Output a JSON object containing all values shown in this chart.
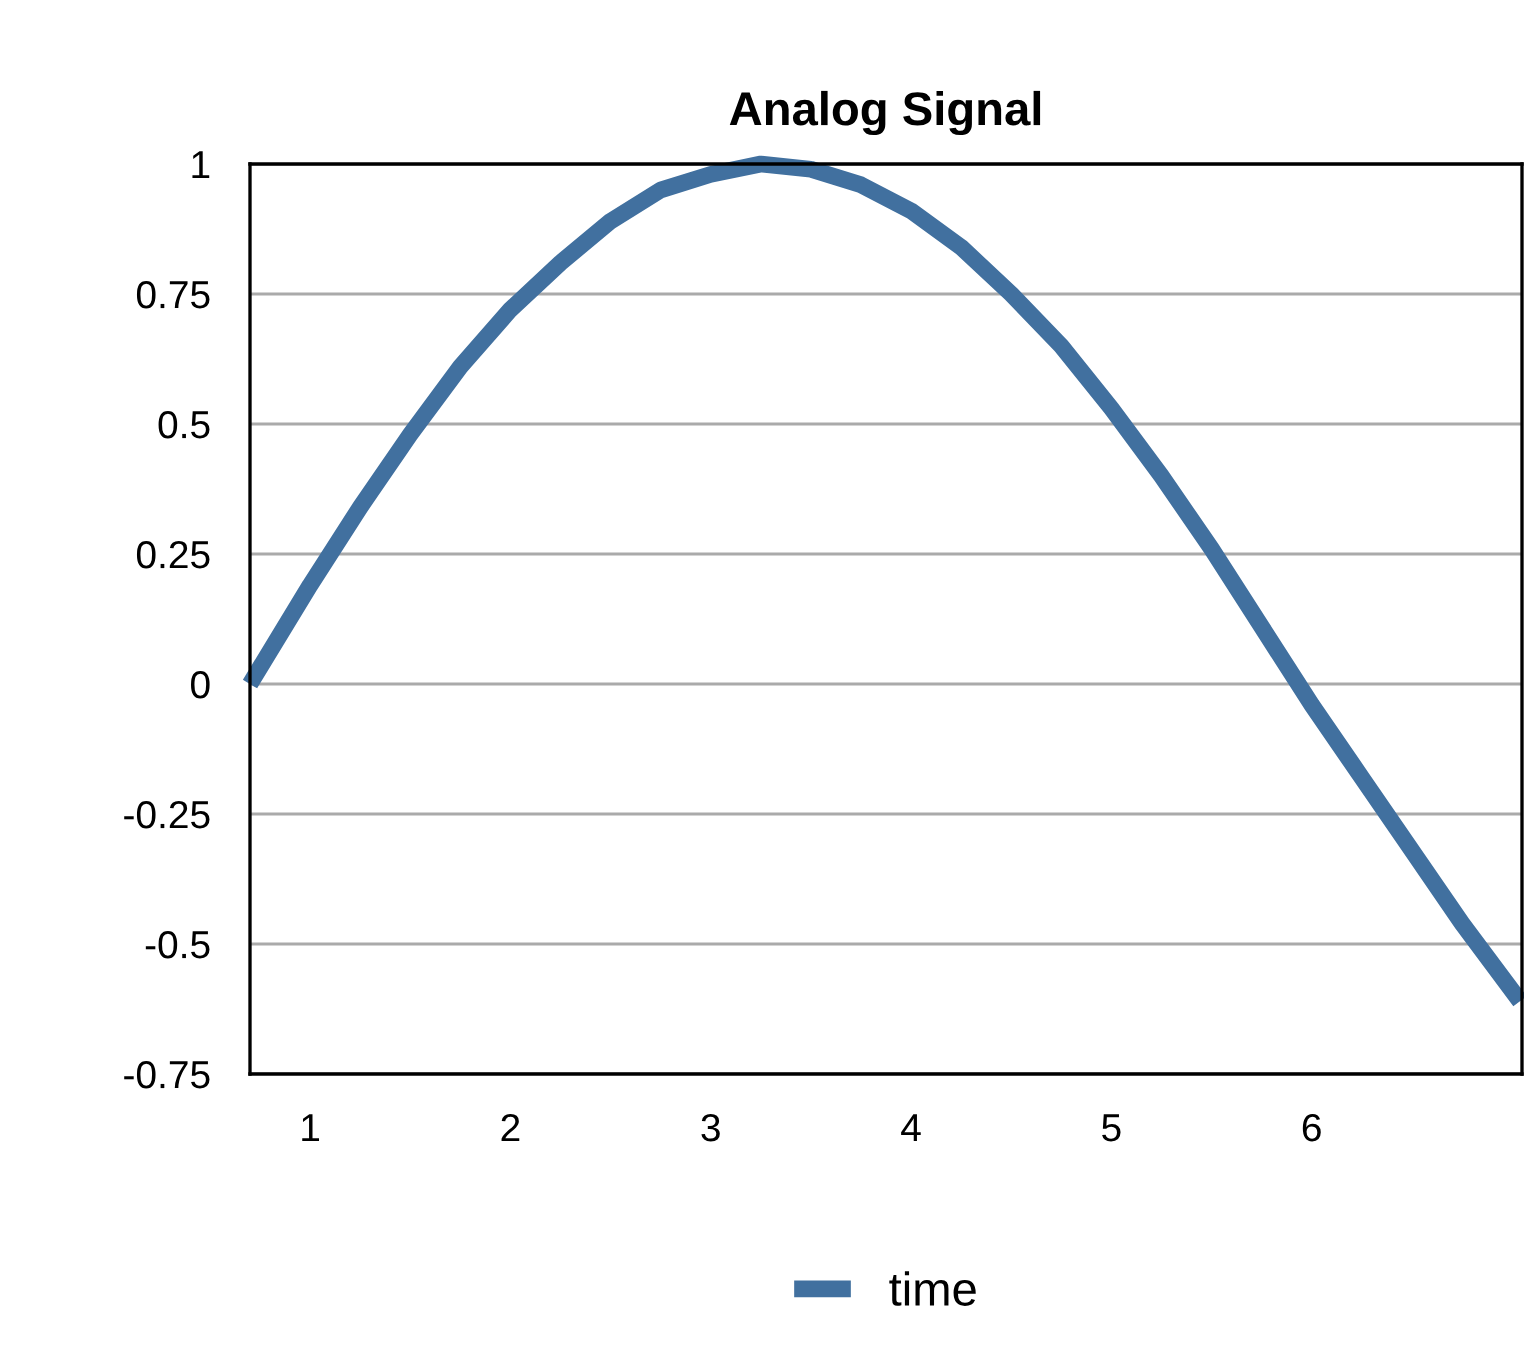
{
  "chart_data": {
    "type": "line",
    "title": "Analog Signal",
    "x": [
      0.7,
      1.0,
      1.25,
      1.5,
      1.75,
      2,
      2.25,
      2.5,
      2.75,
      3,
      3.25,
      3.5,
      3.75,
      4,
      4.25,
      4.5,
      4.75,
      5,
      5.25,
      5.5,
      5.75,
      6,
      6.25,
      6.5,
      6.75,
      7.04
    ],
    "series": [
      {
        "name": "time",
        "color": "#41709f",
        "values": [
          0.0,
          0.19,
          0.34,
          0.48,
          0.61,
          0.72,
          0.81,
          0.89,
          0.95,
          0.98,
          1.0,
          0.99,
          0.96,
          0.91,
          0.84,
          0.75,
          0.65,
          0.53,
          0.4,
          0.26,
          0.11,
          -0.04,
          -0.18,
          -0.32,
          -0.46,
          -0.61
        ]
      }
    ],
    "xlim": [
      0.7,
      7.05
    ],
    "xticks": [
      1,
      2,
      3,
      4,
      5,
      6
    ],
    "ylim": [
      -0.75,
      1
    ],
    "yticks": [
      -0.75,
      -0.5,
      -0.25,
      0,
      0.25,
      0.5,
      0.75,
      1
    ],
    "grid": "y",
    "legend": "bottom"
  }
}
